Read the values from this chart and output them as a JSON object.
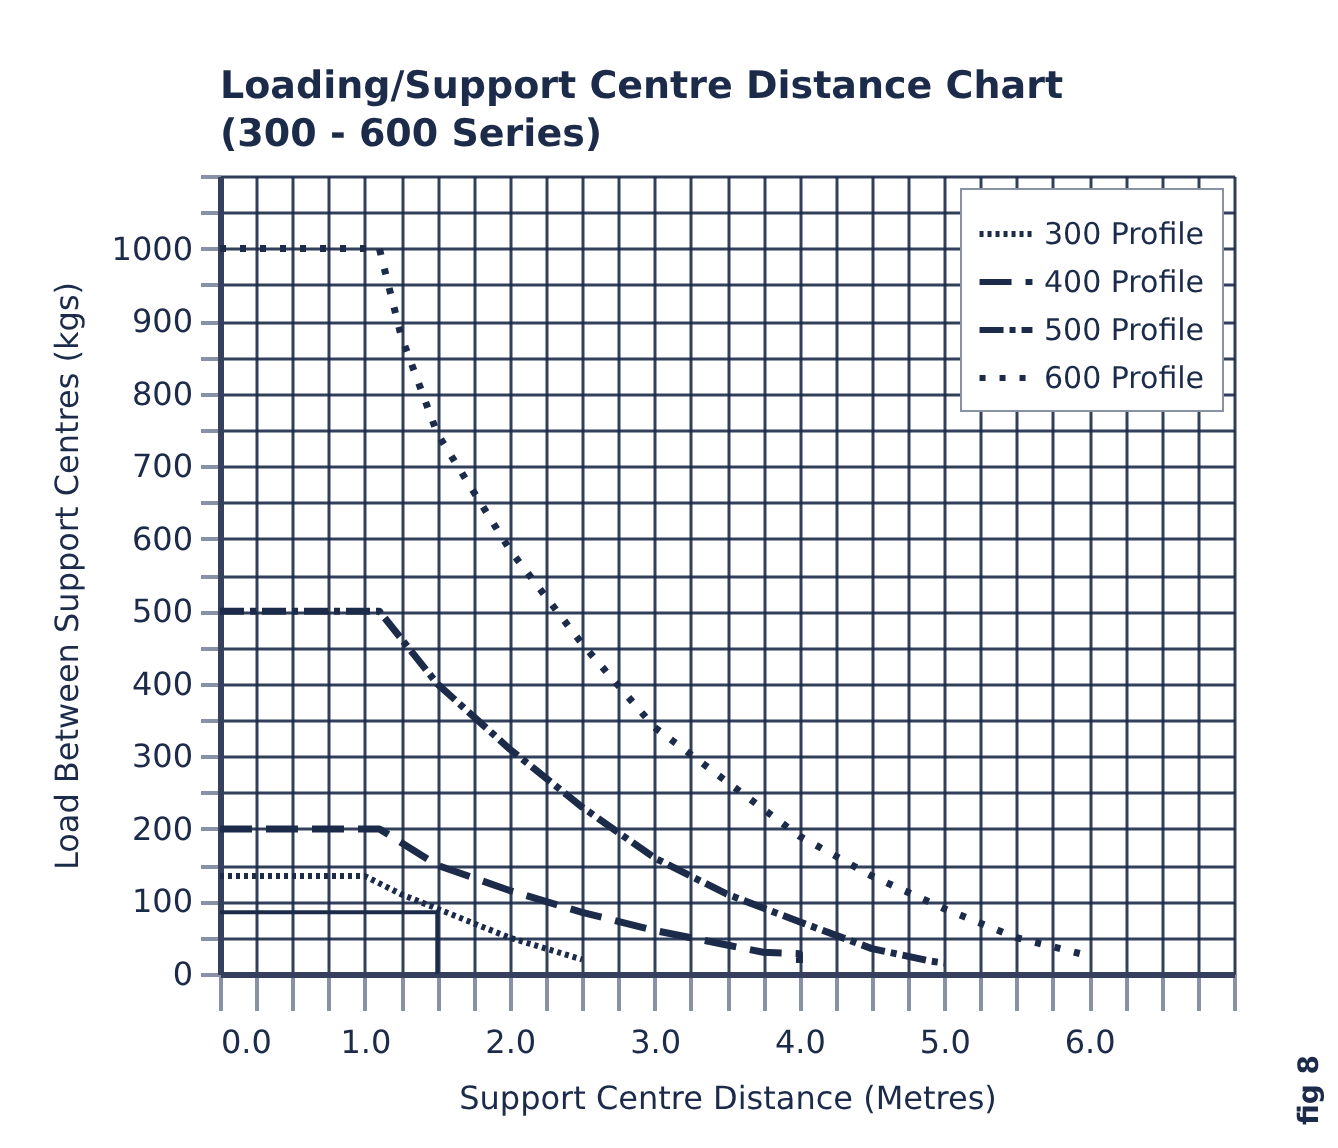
{
  "chart_data": {
    "type": "line",
    "title": [
      "Loading/Support Centre Distance Chart",
      "(300 - 600 Series)"
    ],
    "xlabel": "Support Centre Distance (Metres)",
    "ylabel": "Load Between Support Centres (kgs)",
    "annotations": [
      "fig 8"
    ],
    "xlim": [
      0,
      7
    ],
    "ylim": [
      0,
      1100
    ],
    "xticks": [
      {
        "value": 0,
        "label": "0.0"
      },
      {
        "value": 0.25,
        "label": null
      },
      {
        "value": 0.5,
        "label": null
      },
      {
        "value": 0.75,
        "label": null
      },
      {
        "value": 1,
        "label": "1.0"
      },
      {
        "value": 1.25,
        "label": null
      },
      {
        "value": 1.5,
        "label": null
      },
      {
        "value": 1.75,
        "label": null
      },
      {
        "value": 2,
        "label": "2.0"
      },
      {
        "value": 2.25,
        "label": null
      },
      {
        "value": 2.5,
        "label": null
      },
      {
        "value": 2.75,
        "label": null
      },
      {
        "value": 3,
        "label": "3.0"
      },
      {
        "value": 3.25,
        "label": null
      },
      {
        "value": 3.5,
        "label": null
      },
      {
        "value": 3.75,
        "label": null
      },
      {
        "value": 4,
        "label": "4.0"
      },
      {
        "value": 4.25,
        "label": null
      },
      {
        "value": 4.5,
        "label": null
      },
      {
        "value": 4.75,
        "label": null
      },
      {
        "value": 5,
        "label": "5.0"
      },
      {
        "value": 5.25,
        "label": null
      },
      {
        "value": 5.5,
        "label": null
      },
      {
        "value": 5.75,
        "label": null
      },
      {
        "value": 6,
        "label": "6.0"
      },
      {
        "value": 6.25,
        "label": null
      },
      {
        "value": 6.5,
        "label": null
      },
      {
        "value": 6.75,
        "label": null
      },
      {
        "value": 7,
        "label": null
      }
    ],
    "yticks": [
      0,
      {
        "value": 50,
        "label": null
      },
      100,
      {
        "value": 150,
        "label": null
      },
      200,
      {
        "value": 250,
        "label": null
      },
      300,
      {
        "value": 350,
        "label": null
      },
      400,
      {
        "value": 450,
        "label": null
      },
      500,
      {
        "value": 550,
        "label": null
      },
      600,
      {
        "value": 650,
        "label": null
      },
      700,
      {
        "value": 750,
        "label": null
      },
      800,
      {
        "value": 850,
        "label": null
      },
      900,
      {
        "value": 950,
        "label": null
      },
      1000,
      {
        "value": 1050,
        "label": null
      },
      {
        "value": 1100,
        "label": null
      }
    ],
    "grid": true,
    "legend": "top right",
    "marker": "none",
    "series": [
      {
        "name": "300 Profile",
        "color": "#1c2b4a",
        "line_style": "dotted",
        "x": [
          0,
          1.0,
          1.25,
          1.5,
          2.0,
          2.5
        ],
        "values": [
          135,
          135,
          110,
          90,
          50,
          20
        ]
      },
      {
        "name": "400 Profile",
        "color": "#1c2b4a",
        "line_style": "dashed",
        "x": [
          0,
          1.1,
          1.5,
          2.0,
          2.5,
          3.0,
          3.5,
          3.75,
          4.0,
          4.0
        ],
        "values": [
          200,
          200,
          150,
          115,
          85,
          60,
          40,
          30,
          28,
          15
        ]
      },
      {
        "name": "500 Profile",
        "color": "#1c2b4a",
        "line_style": "dashdot",
        "x": [
          0,
          1.1,
          1.5,
          2.0,
          2.5,
          3.0,
          3.5,
          4.0,
          4.5,
          4.9,
          5.0
        ],
        "values": [
          500,
          500,
          400,
          310,
          230,
          160,
          110,
          72,
          35,
          18,
          15
        ]
      },
      {
        "name": "600 Profile",
        "color": "#1c2b4a",
        "line_style": "loosedotted",
        "x": [
          0,
          1.1,
          1.25,
          1.5,
          2.0,
          2.5,
          3.0,
          3.5,
          4.0,
          4.5,
          5.0,
          5.5,
          6.0
        ],
        "values": [
          1000,
          1000,
          880,
          745,
          585,
          455,
          340,
          265,
          190,
          135,
          90,
          50,
          25
        ]
      },
      {
        "color": "#1c2b4a",
        "line_style": "solid",
        "x": [
          1.5,
          1.5,
          0
        ],
        "values": [
          0,
          85,
          85
        ]
      }
    ]
  }
}
